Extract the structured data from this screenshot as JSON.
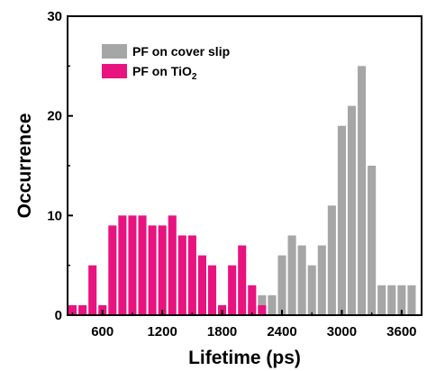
{
  "chart_data": {
    "type": "bar",
    "xlabel": "Lifetime (ps)",
    "ylabel": "Occurrence",
    "xlim": [
      250,
      3800
    ],
    "ylim": [
      0,
      30
    ],
    "bin_width": 100,
    "x_ticks": [
      600,
      1200,
      1800,
      2400,
      3000,
      3600
    ],
    "x_tick_labels": [
      "600",
      "1200",
      "1800",
      "2400",
      "3000",
      "3600"
    ],
    "y_ticks": [
      0,
      10,
      20,
      30
    ],
    "y_tick_labels": [
      "0",
      "10",
      "20",
      "30"
    ],
    "legend_position": "top-left",
    "series": [
      {
        "name": "PF on cover slip",
        "color": "#a6a6a6",
        "bins": [
          {
            "x": 2100,
            "value": 1
          },
          {
            "x": 2200,
            "value": 2
          },
          {
            "x": 2300,
            "value": 2
          },
          {
            "x": 2400,
            "value": 6
          },
          {
            "x": 2500,
            "value": 8
          },
          {
            "x": 2600,
            "value": 7
          },
          {
            "x": 2700,
            "value": 5
          },
          {
            "x": 2800,
            "value": 7
          },
          {
            "x": 2900,
            "value": 11
          },
          {
            "x": 3000,
            "value": 19
          },
          {
            "x": 3100,
            "value": 21
          },
          {
            "x": 3200,
            "value": 25
          },
          {
            "x": 3300,
            "value": 15
          },
          {
            "x": 3400,
            "value": 3
          },
          {
            "x": 3500,
            "value": 3
          },
          {
            "x": 3600,
            "value": 3
          },
          {
            "x": 3700,
            "value": 3
          }
        ]
      },
      {
        "name": "PF on TiO",
        "name_subscript": "2",
        "color": "#e8137f",
        "bins": [
          {
            "x": 300,
            "value": 1
          },
          {
            "x": 400,
            "value": 1
          },
          {
            "x": 500,
            "value": 5
          },
          {
            "x": 600,
            "value": 1
          },
          {
            "x": 700,
            "value": 9
          },
          {
            "x": 800,
            "value": 10
          },
          {
            "x": 900,
            "value": 10
          },
          {
            "x": 1000,
            "value": 10
          },
          {
            "x": 1100,
            "value": 9
          },
          {
            "x": 1200,
            "value": 9
          },
          {
            "x": 1300,
            "value": 10
          },
          {
            "x": 1400,
            "value": 8
          },
          {
            "x": 1500,
            "value": 8
          },
          {
            "x": 1600,
            "value": 6
          },
          {
            "x": 1700,
            "value": 5
          },
          {
            "x": 1800,
            "value": 1
          },
          {
            "x": 1900,
            "value": 5
          },
          {
            "x": 2000,
            "value": 7
          },
          {
            "x": 2100,
            "value": 3
          },
          {
            "x": 2200,
            "value": 1
          }
        ]
      }
    ]
  }
}
